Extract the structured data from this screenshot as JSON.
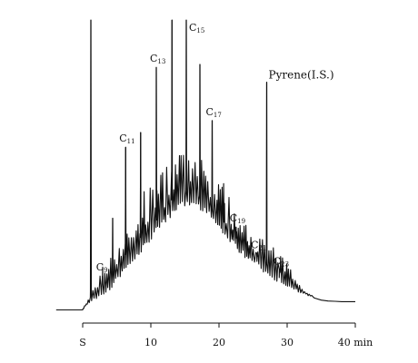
{
  "chart_data": {
    "type": "line",
    "title": "",
    "xlabel": "",
    "ylabel": "",
    "xlim": [
      -0.3,
      40.8
    ],
    "ylim": [
      0,
      100
    ],
    "grid": false,
    "x_ticks": [
      {
        "x": 0,
        "label": "S"
      },
      {
        "x": 10,
        "label": "10"
      },
      {
        "x": 20,
        "label": "20"
      },
      {
        "x": 30,
        "label": "30"
      },
      {
        "x": 40,
        "label": "40 min"
      }
    ],
    "baseline": [
      [
        -3.9,
        2
      ],
      [
        0,
        2
      ],
      [
        0.1,
        3
      ],
      [
        1,
        5
      ],
      [
        2,
        7
      ],
      [
        3,
        9
      ],
      [
        4,
        11
      ],
      [
        5,
        14
      ],
      [
        6,
        17
      ],
      [
        7,
        19.5
      ],
      [
        8,
        22
      ],
      [
        9,
        25
      ],
      [
        10,
        28
      ],
      [
        11,
        31
      ],
      [
        12,
        33.5
      ],
      [
        13,
        36
      ],
      [
        14,
        38
      ],
      [
        15,
        39.5
      ],
      [
        16,
        39
      ],
      [
        17,
        38
      ],
      [
        18,
        36.5
      ],
      [
        19,
        34
      ],
      [
        20,
        31
      ],
      [
        21,
        28
      ],
      [
        22,
        25.5
      ],
      [
        23,
        23
      ],
      [
        24,
        21
      ],
      [
        25,
        19
      ],
      [
        26,
        17.5
      ],
      [
        27,
        15.5
      ],
      [
        28,
        14
      ],
      [
        29,
        12.5
      ],
      [
        30,
        11
      ],
      [
        31,
        9.5
      ],
      [
        32,
        8
      ],
      [
        33,
        7
      ],
      [
        34,
        6
      ],
      [
        35,
        5.3
      ],
      [
        36,
        5
      ],
      [
        38,
        4.8
      ],
      [
        40,
        4.8
      ]
    ],
    "peaks": [
      {
        "x": 1.2,
        "height": 100,
        "label": ""
      },
      {
        "x": 2.9,
        "height": 13.5,
        "label": "C9"
      },
      {
        "x": 4.4,
        "height": 33,
        "label": ""
      },
      {
        "x": 6.3,
        "height": 57,
        "label": "C11"
      },
      {
        "x": 8.5,
        "height": 62,
        "label": ""
      },
      {
        "x": 10.8,
        "height": 84,
        "label": "C13"
      },
      {
        "x": 13.1,
        "height": 100,
        "label": ""
      },
      {
        "x": 15.2,
        "height": 100,
        "label": "C15"
      },
      {
        "x": 17.2,
        "height": 85,
        "label": ""
      },
      {
        "x": 19.0,
        "height": 66,
        "label": "C17"
      },
      {
        "x": 20.8,
        "height": 38,
        "label": ""
      },
      {
        "x": 22.5,
        "height": 30,
        "label": "C19"
      },
      {
        "x": 24.2,
        "height": 24,
        "label": ""
      },
      {
        "x": 25.6,
        "height": 21,
        "label": "C21"
      },
      {
        "x": 27.0,
        "height": 79,
        "label": "Pyrene(I.S.)"
      },
      {
        "x": 28.9,
        "height": 15.5,
        "label": "C23"
      }
    ]
  }
}
